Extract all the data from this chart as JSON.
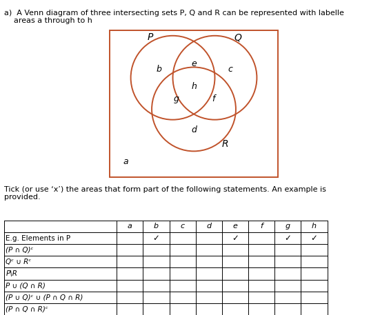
{
  "title_text": "a)  A Venn diagram of three intersecting sets P, Q and R can be represented with labelle\n    areas a through to h",
  "tick_instruction": "Tick (or use ‘x’) the areas that form part of the following statements. An example is\nprovided.",
  "venn_color": "#c0522a",
  "rect_color": "#c0522a",
  "set_labels": [
    "P",
    "Q",
    "R"
  ],
  "region_labels": [
    "b",
    "e",
    "c",
    "g",
    "h",
    "f",
    "d",
    "a"
  ],
  "table_headers": [
    "",
    "a",
    "b",
    "c",
    "d",
    "e",
    "f",
    "g",
    "h"
  ],
  "table_rows": [
    [
      "E.g. Elements in P",
      "",
      "✓",
      "",
      "",
      "✓",
      "",
      "✓",
      "✓"
    ],
    [
      "(P ∩ Q)ᶜ",
      "",
      "",
      "",
      "",
      "",
      "",
      "",
      ""
    ],
    [
      "Qᶜ ∪ Rᶜ",
      "",
      "",
      "",
      "",
      "",
      "",
      "",
      ""
    ],
    [
      "P\\R",
      "",
      "",
      "",
      "",
      "",
      "",
      "",
      ""
    ],
    [
      "P ∪ (Q ∩ R)",
      "",
      "",
      "",
      "",
      "",
      "",
      "",
      ""
    ],
    [
      "(P ∪ Q)ᶜ ∪ (P ∩ Q ∩ R)",
      "",
      "",
      "",
      "",
      "",
      "",
      "",
      ""
    ],
    [
      "(P ∩ Q ∩ R)ᶜ",
      "",
      "",
      "",
      "",
      "",
      "",
      "",
      ""
    ]
  ],
  "eg_underline": true,
  "background": "#ffffff"
}
